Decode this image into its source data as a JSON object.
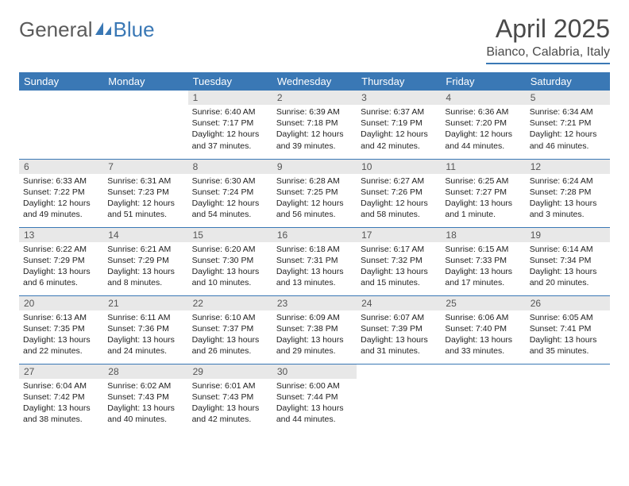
{
  "brand": {
    "part1": "General",
    "part2": "Blue"
  },
  "title": "April 2025",
  "location": "Bianco, Calabria, Italy",
  "colors": {
    "accent": "#3a78b5",
    "header_row_bg": "#3a78b5",
    "daynum_bg": "#e8e8e8",
    "text": "#222222",
    "title_text": "#4a4a4a",
    "logo_gray": "#5b5b5b"
  },
  "calendar": {
    "type": "table",
    "columns": [
      "Sunday",
      "Monday",
      "Tuesday",
      "Wednesday",
      "Thursday",
      "Friday",
      "Saturday"
    ],
    "weeks": [
      [
        null,
        null,
        {
          "d": "1",
          "sr": "6:40 AM",
          "ss": "7:17 PM",
          "dl": "12 hours and 37 minutes."
        },
        {
          "d": "2",
          "sr": "6:39 AM",
          "ss": "7:18 PM",
          "dl": "12 hours and 39 minutes."
        },
        {
          "d": "3",
          "sr": "6:37 AM",
          "ss": "7:19 PM",
          "dl": "12 hours and 42 minutes."
        },
        {
          "d": "4",
          "sr": "6:36 AM",
          "ss": "7:20 PM",
          "dl": "12 hours and 44 minutes."
        },
        {
          "d": "5",
          "sr": "6:34 AM",
          "ss": "7:21 PM",
          "dl": "12 hours and 46 minutes."
        }
      ],
      [
        {
          "d": "6",
          "sr": "6:33 AM",
          "ss": "7:22 PM",
          "dl": "12 hours and 49 minutes."
        },
        {
          "d": "7",
          "sr": "6:31 AM",
          "ss": "7:23 PM",
          "dl": "12 hours and 51 minutes."
        },
        {
          "d": "8",
          "sr": "6:30 AM",
          "ss": "7:24 PM",
          "dl": "12 hours and 54 minutes."
        },
        {
          "d": "9",
          "sr": "6:28 AM",
          "ss": "7:25 PM",
          "dl": "12 hours and 56 minutes."
        },
        {
          "d": "10",
          "sr": "6:27 AM",
          "ss": "7:26 PM",
          "dl": "12 hours and 58 minutes."
        },
        {
          "d": "11",
          "sr": "6:25 AM",
          "ss": "7:27 PM",
          "dl": "13 hours and 1 minute."
        },
        {
          "d": "12",
          "sr": "6:24 AM",
          "ss": "7:28 PM",
          "dl": "13 hours and 3 minutes."
        }
      ],
      [
        {
          "d": "13",
          "sr": "6:22 AM",
          "ss": "7:29 PM",
          "dl": "13 hours and 6 minutes."
        },
        {
          "d": "14",
          "sr": "6:21 AM",
          "ss": "7:29 PM",
          "dl": "13 hours and 8 minutes."
        },
        {
          "d": "15",
          "sr": "6:20 AM",
          "ss": "7:30 PM",
          "dl": "13 hours and 10 minutes."
        },
        {
          "d": "16",
          "sr": "6:18 AM",
          "ss": "7:31 PM",
          "dl": "13 hours and 13 minutes."
        },
        {
          "d": "17",
          "sr": "6:17 AM",
          "ss": "7:32 PM",
          "dl": "13 hours and 15 minutes."
        },
        {
          "d": "18",
          "sr": "6:15 AM",
          "ss": "7:33 PM",
          "dl": "13 hours and 17 minutes."
        },
        {
          "d": "19",
          "sr": "6:14 AM",
          "ss": "7:34 PM",
          "dl": "13 hours and 20 minutes."
        }
      ],
      [
        {
          "d": "20",
          "sr": "6:13 AM",
          "ss": "7:35 PM",
          "dl": "13 hours and 22 minutes."
        },
        {
          "d": "21",
          "sr": "6:11 AM",
          "ss": "7:36 PM",
          "dl": "13 hours and 24 minutes."
        },
        {
          "d": "22",
          "sr": "6:10 AM",
          "ss": "7:37 PM",
          "dl": "13 hours and 26 minutes."
        },
        {
          "d": "23",
          "sr": "6:09 AM",
          "ss": "7:38 PM",
          "dl": "13 hours and 29 minutes."
        },
        {
          "d": "24",
          "sr": "6:07 AM",
          "ss": "7:39 PM",
          "dl": "13 hours and 31 minutes."
        },
        {
          "d": "25",
          "sr": "6:06 AM",
          "ss": "7:40 PM",
          "dl": "13 hours and 33 minutes."
        },
        {
          "d": "26",
          "sr": "6:05 AM",
          "ss": "7:41 PM",
          "dl": "13 hours and 35 minutes."
        }
      ],
      [
        {
          "d": "27",
          "sr": "6:04 AM",
          "ss": "7:42 PM",
          "dl": "13 hours and 38 minutes."
        },
        {
          "d": "28",
          "sr": "6:02 AM",
          "ss": "7:43 PM",
          "dl": "13 hours and 40 minutes."
        },
        {
          "d": "29",
          "sr": "6:01 AM",
          "ss": "7:43 PM",
          "dl": "13 hours and 42 minutes."
        },
        {
          "d": "30",
          "sr": "6:00 AM",
          "ss": "7:44 PM",
          "dl": "13 hours and 44 minutes."
        },
        null,
        null,
        null
      ]
    ],
    "labels": {
      "sunrise": "Sunrise:",
      "sunset": "Sunset:",
      "daylight": "Daylight:"
    }
  }
}
